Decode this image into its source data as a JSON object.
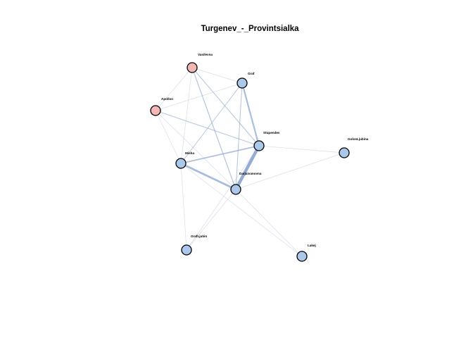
{
  "title": "Turgenev_-_Provintsialka",
  "colors": {
    "female_node": "#f5b6b6",
    "male_node": "#aac8ea",
    "node_border": "#000000",
    "edge": "#8fa9d1",
    "weak_edge": "#d4d9e6"
  },
  "nodes": [
    {
      "id": "Vasilevna",
      "label": "Vasilevna",
      "group": "female"
    },
    {
      "id": "Graf",
      "label": "Graf",
      "group": "male"
    },
    {
      "id": "Apollon",
      "label": "Apollon",
      "group": "female"
    },
    {
      "id": "Stupendev",
      "label": "Stupendev",
      "group": "male"
    },
    {
      "id": "GolosLjubina",
      "label": "GolosLjubina",
      "group": "male"
    },
    {
      "id": "Misha",
      "label": "Misha",
      "group": "male"
    },
    {
      "id": "Darjaivanovna",
      "label": "Darjaivanovna",
      "group": "male"
    },
    {
      "id": "GrafLjubin",
      "label": "GrafLjubin",
      "group": "male"
    },
    {
      "id": "Lakej",
      "label": "Lakej",
      "group": "male"
    }
  ],
  "edges": [
    {
      "source": "Stupendev",
      "target": "Darjaivanovna",
      "weight": 5
    },
    {
      "source": "Misha",
      "target": "Darjaivanovna",
      "weight": 3
    },
    {
      "source": "Graf",
      "target": "Stupendev",
      "weight": 2.5
    },
    {
      "source": "Misha",
      "target": "Stupendev",
      "weight": 2
    },
    {
      "source": "Vasilevna",
      "target": "Darjaivanovna",
      "weight": 1.4
    },
    {
      "source": "Vasilevna",
      "target": "Stupendev",
      "weight": 1.2
    },
    {
      "source": "Graf",
      "target": "Darjaivanovna",
      "weight": 1.2
    },
    {
      "source": "Apollon",
      "target": "Stupendev",
      "weight": 1.2
    },
    {
      "source": "Graf",
      "target": "Misha",
      "weight": 1.1
    },
    {
      "source": "Apollon",
      "target": "Graf",
      "weight": 0.9
    },
    {
      "source": "Vasilevna",
      "target": "Graf",
      "weight": 0.8
    },
    {
      "source": "Vasilevna",
      "target": "Apollon",
      "weight": 0.5
    },
    {
      "source": "Vasilevna",
      "target": "Misha",
      "weight": 0.5
    },
    {
      "source": "Apollon",
      "target": "Misha",
      "weight": 0.5
    },
    {
      "source": "Apollon",
      "target": "Darjaivanovna",
      "weight": 0.5
    },
    {
      "source": "Stupendev",
      "target": "GolosLjubina",
      "weight": 0.5
    },
    {
      "source": "Darjaivanovna",
      "target": "GolosLjubina",
      "weight": 0.5
    },
    {
      "source": "Stupendev",
      "target": "GrafLjubin",
      "weight": 0.5
    },
    {
      "source": "Darjaivanovna",
      "target": "GrafLjubin",
      "weight": 0.5
    },
    {
      "source": "Misha",
      "target": "GrafLjubin",
      "weight": 0.5
    },
    {
      "source": "Darjaivanovna",
      "target": "Lakej",
      "weight": 0.5
    },
    {
      "source": "Misha",
      "target": "Lakej",
      "weight": 0.5
    }
  ]
}
